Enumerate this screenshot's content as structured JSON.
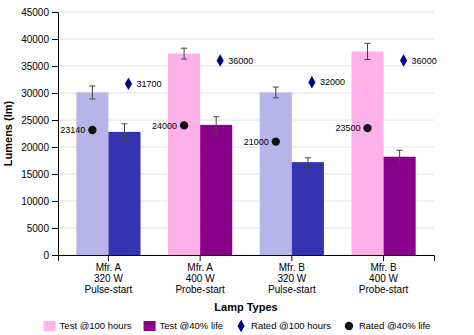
{
  "chart_data": {
    "type": "bar",
    "xlabel": "Lamp Types",
    "ylabel": "Lumens (lm)",
    "categories": [
      "Mfr. A\n320 W\nPulse-start",
      "Mfr. A\n400 W\nProbe-start",
      "Mfr. B\n320 W\nPulse-start",
      "Mfr. B\n400 W\nProbe-start"
    ],
    "series": [
      {
        "name": "Test @100 hours",
        "type": "bar",
        "color": "#ffb4e8",
        "colors": [
          "#b8b4e8",
          "#ffb0e8",
          "#b8b4e8",
          "#ffb0e8"
        ],
        "values": [
          30100,
          37300,
          30100,
          37700
        ],
        "errors": [
          1200,
          1000,
          1000,
          1500
        ]
      },
      {
        "name": "Test @40% life",
        "type": "bar",
        "color": "#8b008b",
        "colors": [
          "#3434b0",
          "#8b008b",
          "#3434b0",
          "#8b008b"
        ],
        "values": [
          22800,
          24100,
          17200,
          18200
        ],
        "errors": [
          1500,
          1500,
          800,
          1200
        ]
      },
      {
        "name": "Rated @100 hours",
        "type": "scatter",
        "marker": "diamond",
        "color": "#00008b",
        "values": [
          31700,
          36000,
          32000,
          36000
        ]
      },
      {
        "name": "Rated @40% life",
        "type": "scatter",
        "marker": "circle",
        "color": "#111111",
        "values": [
          23140,
          24000,
          21000,
          23500
        ]
      }
    ],
    "data_labels": true,
    "ylim": [
      0,
      45000
    ],
    "yticks": [
      0,
      5000,
      10000,
      15000,
      20000,
      25000,
      30000,
      35000,
      40000,
      45000
    ],
    "grid": true,
    "legend": "bottom"
  }
}
